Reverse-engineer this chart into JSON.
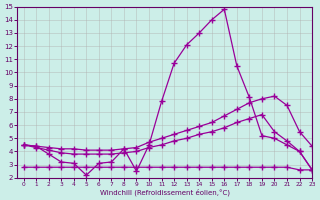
{
  "xlabel": "Windchill (Refroidissement éolien,°C)",
  "bg_color": "#cceee8",
  "grid_color": "#b0b0b0",
  "line_color": "#990099",
  "xlim": [
    -0.5,
    23
  ],
  "ylim": [
    2,
    15
  ],
  "xticks": [
    0,
    1,
    2,
    3,
    4,
    5,
    6,
    7,
    8,
    9,
    10,
    11,
    12,
    13,
    14,
    15,
    16,
    17,
    18,
    19,
    20,
    21,
    22,
    23
  ],
  "yticks": [
    2,
    3,
    4,
    5,
    6,
    7,
    8,
    9,
    10,
    11,
    12,
    13,
    14,
    15
  ],
  "line1_x": [
    0,
    1,
    2,
    3,
    4,
    5,
    6,
    7,
    8,
    9,
    10,
    11,
    12,
    13,
    14,
    15,
    16,
    17,
    18,
    19,
    20,
    21,
    22,
    23
  ],
  "line1_y": [
    4.5,
    4.4,
    3.8,
    3.2,
    3.1,
    2.2,
    3.1,
    3.2,
    4.2,
    2.5,
    4.5,
    7.8,
    10.7,
    12.1,
    13.0,
    14.0,
    14.8,
    10.5,
    8.1,
    5.2,
    5.0,
    4.5,
    4.0,
    2.6
  ],
  "line2_x": [
    0,
    1,
    2,
    3,
    4,
    5,
    6,
    7,
    8,
    9,
    10,
    11,
    12,
    13,
    14,
    15,
    16,
    17,
    18,
    19,
    20,
    21,
    22,
    23
  ],
  "line2_y": [
    4.5,
    4.4,
    4.3,
    4.2,
    4.2,
    4.1,
    4.1,
    4.1,
    4.2,
    4.3,
    4.7,
    5.0,
    5.3,
    5.6,
    5.9,
    6.2,
    6.7,
    7.2,
    7.7,
    8.0,
    8.2,
    7.5,
    5.5,
    4.4
  ],
  "line3_x": [
    0,
    1,
    2,
    3,
    4,
    5,
    6,
    7,
    8,
    9,
    10,
    11,
    12,
    13,
    14,
    15,
    16,
    17,
    18,
    19,
    20,
    21,
    22,
    23
  ],
  "line3_y": [
    4.5,
    4.3,
    4.1,
    3.9,
    3.8,
    3.8,
    3.8,
    3.8,
    3.9,
    4.0,
    4.3,
    4.5,
    4.8,
    5.0,
    5.3,
    5.5,
    5.8,
    6.2,
    6.5,
    6.8,
    5.5,
    4.8,
    4.0,
    2.6
  ],
  "line4_x": [
    0,
    1,
    2,
    3,
    4,
    5,
    6,
    7,
    8,
    9,
    10,
    11,
    12,
    13,
    14,
    15,
    16,
    17,
    18,
    19,
    20,
    21,
    22,
    23
  ],
  "line4_y": [
    2.8,
    2.8,
    2.8,
    2.8,
    2.8,
    2.8,
    2.8,
    2.8,
    2.8,
    2.8,
    2.8,
    2.8,
    2.8,
    2.8,
    2.8,
    2.8,
    2.8,
    2.8,
    2.8,
    2.8,
    2.8,
    2.8,
    2.6,
    2.6
  ]
}
